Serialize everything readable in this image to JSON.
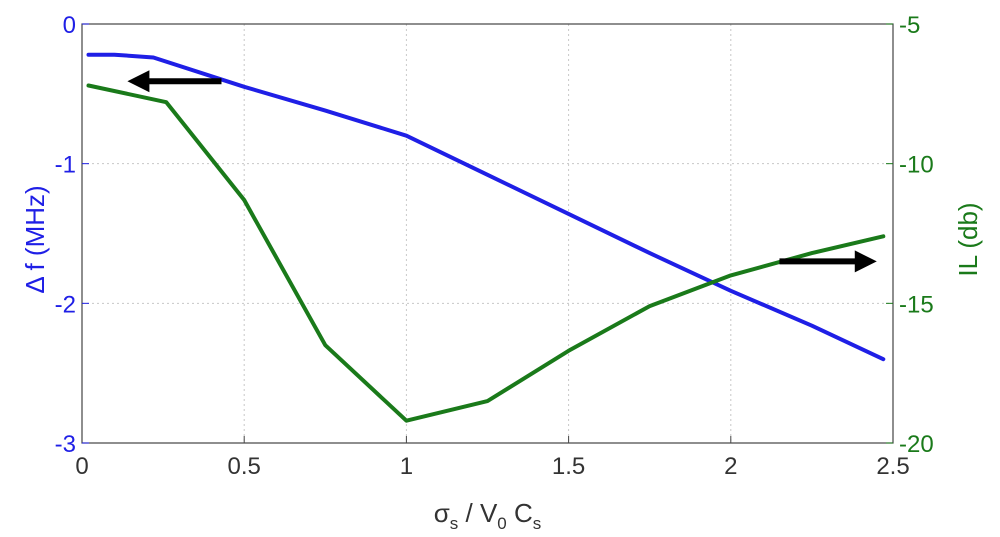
{
  "chart_data": {
    "type": "line",
    "title": "",
    "xlabel": {
      "sigma": "σ",
      "sigma_sub": "s",
      "slash": " / V",
      "v_sub": "0",
      "c": " C",
      "c_sub": "s"
    },
    "ylabel_left": "Δ  f  (MHz)",
    "ylabel_right": "IL  (db)",
    "xlim": [
      0,
      2.5
    ],
    "ylim_left": [
      -3,
      0
    ],
    "ylim_right": [
      -20,
      -5
    ],
    "xticks": [
      "0",
      "0.5",
      "1",
      "1.5",
      "2",
      "2.5"
    ],
    "xtick_values": [
      0,
      0.5,
      1,
      1.5,
      2,
      2.5
    ],
    "yticks_left": [
      "0",
      "-1",
      "-2",
      "-3"
    ],
    "ytick_values_left": [
      0,
      -1,
      -2,
      -3
    ],
    "yticks_right": [
      "-5",
      "-10",
      "-15",
      "-20"
    ],
    "ytick_values_right": [
      -5,
      -10,
      -15,
      -20
    ],
    "grid": true,
    "series": [
      {
        "axis": "left",
        "color": "#1f1fe6",
        "x": [
          0.02,
          0.1,
          0.22,
          0.5,
          0.75,
          1.0,
          1.25,
          1.5,
          1.75,
          2.0,
          2.25,
          2.47
        ],
        "y": [
          -0.22,
          -0.22,
          -0.24,
          -0.45,
          -0.62,
          -0.8,
          -1.08,
          -1.36,
          -1.64,
          -1.91,
          -2.16,
          -2.4
        ]
      },
      {
        "axis": "right",
        "color": "#1a7a1a",
        "x": [
          0.02,
          0.26,
          0.5,
          0.75,
          1.0,
          1.25,
          1.5,
          1.75,
          2.0,
          2.25,
          2.47
        ],
        "y": [
          -7.2,
          -7.8,
          -11.3,
          -16.5,
          -19.2,
          -18.5,
          -16.7,
          -15.1,
          -14.0,
          -13.2,
          -12.6
        ]
      }
    ],
    "annotations": [
      {
        "type": "arrow",
        "direction": "left",
        "points_to_axis": "left",
        "from": [
          0.43,
          -0.41
        ],
        "to": [
          0.14,
          -0.41
        ]
      },
      {
        "type": "arrow",
        "direction": "right",
        "points_to_axis": "right",
        "from": [
          2.15,
          -13.5
        ],
        "to": [
          2.45,
          -13.5
        ]
      }
    ],
    "colors": {
      "left_axis": "#1f1fe6",
      "right_axis": "#1a7a1a",
      "arrow": "#000000"
    }
  }
}
